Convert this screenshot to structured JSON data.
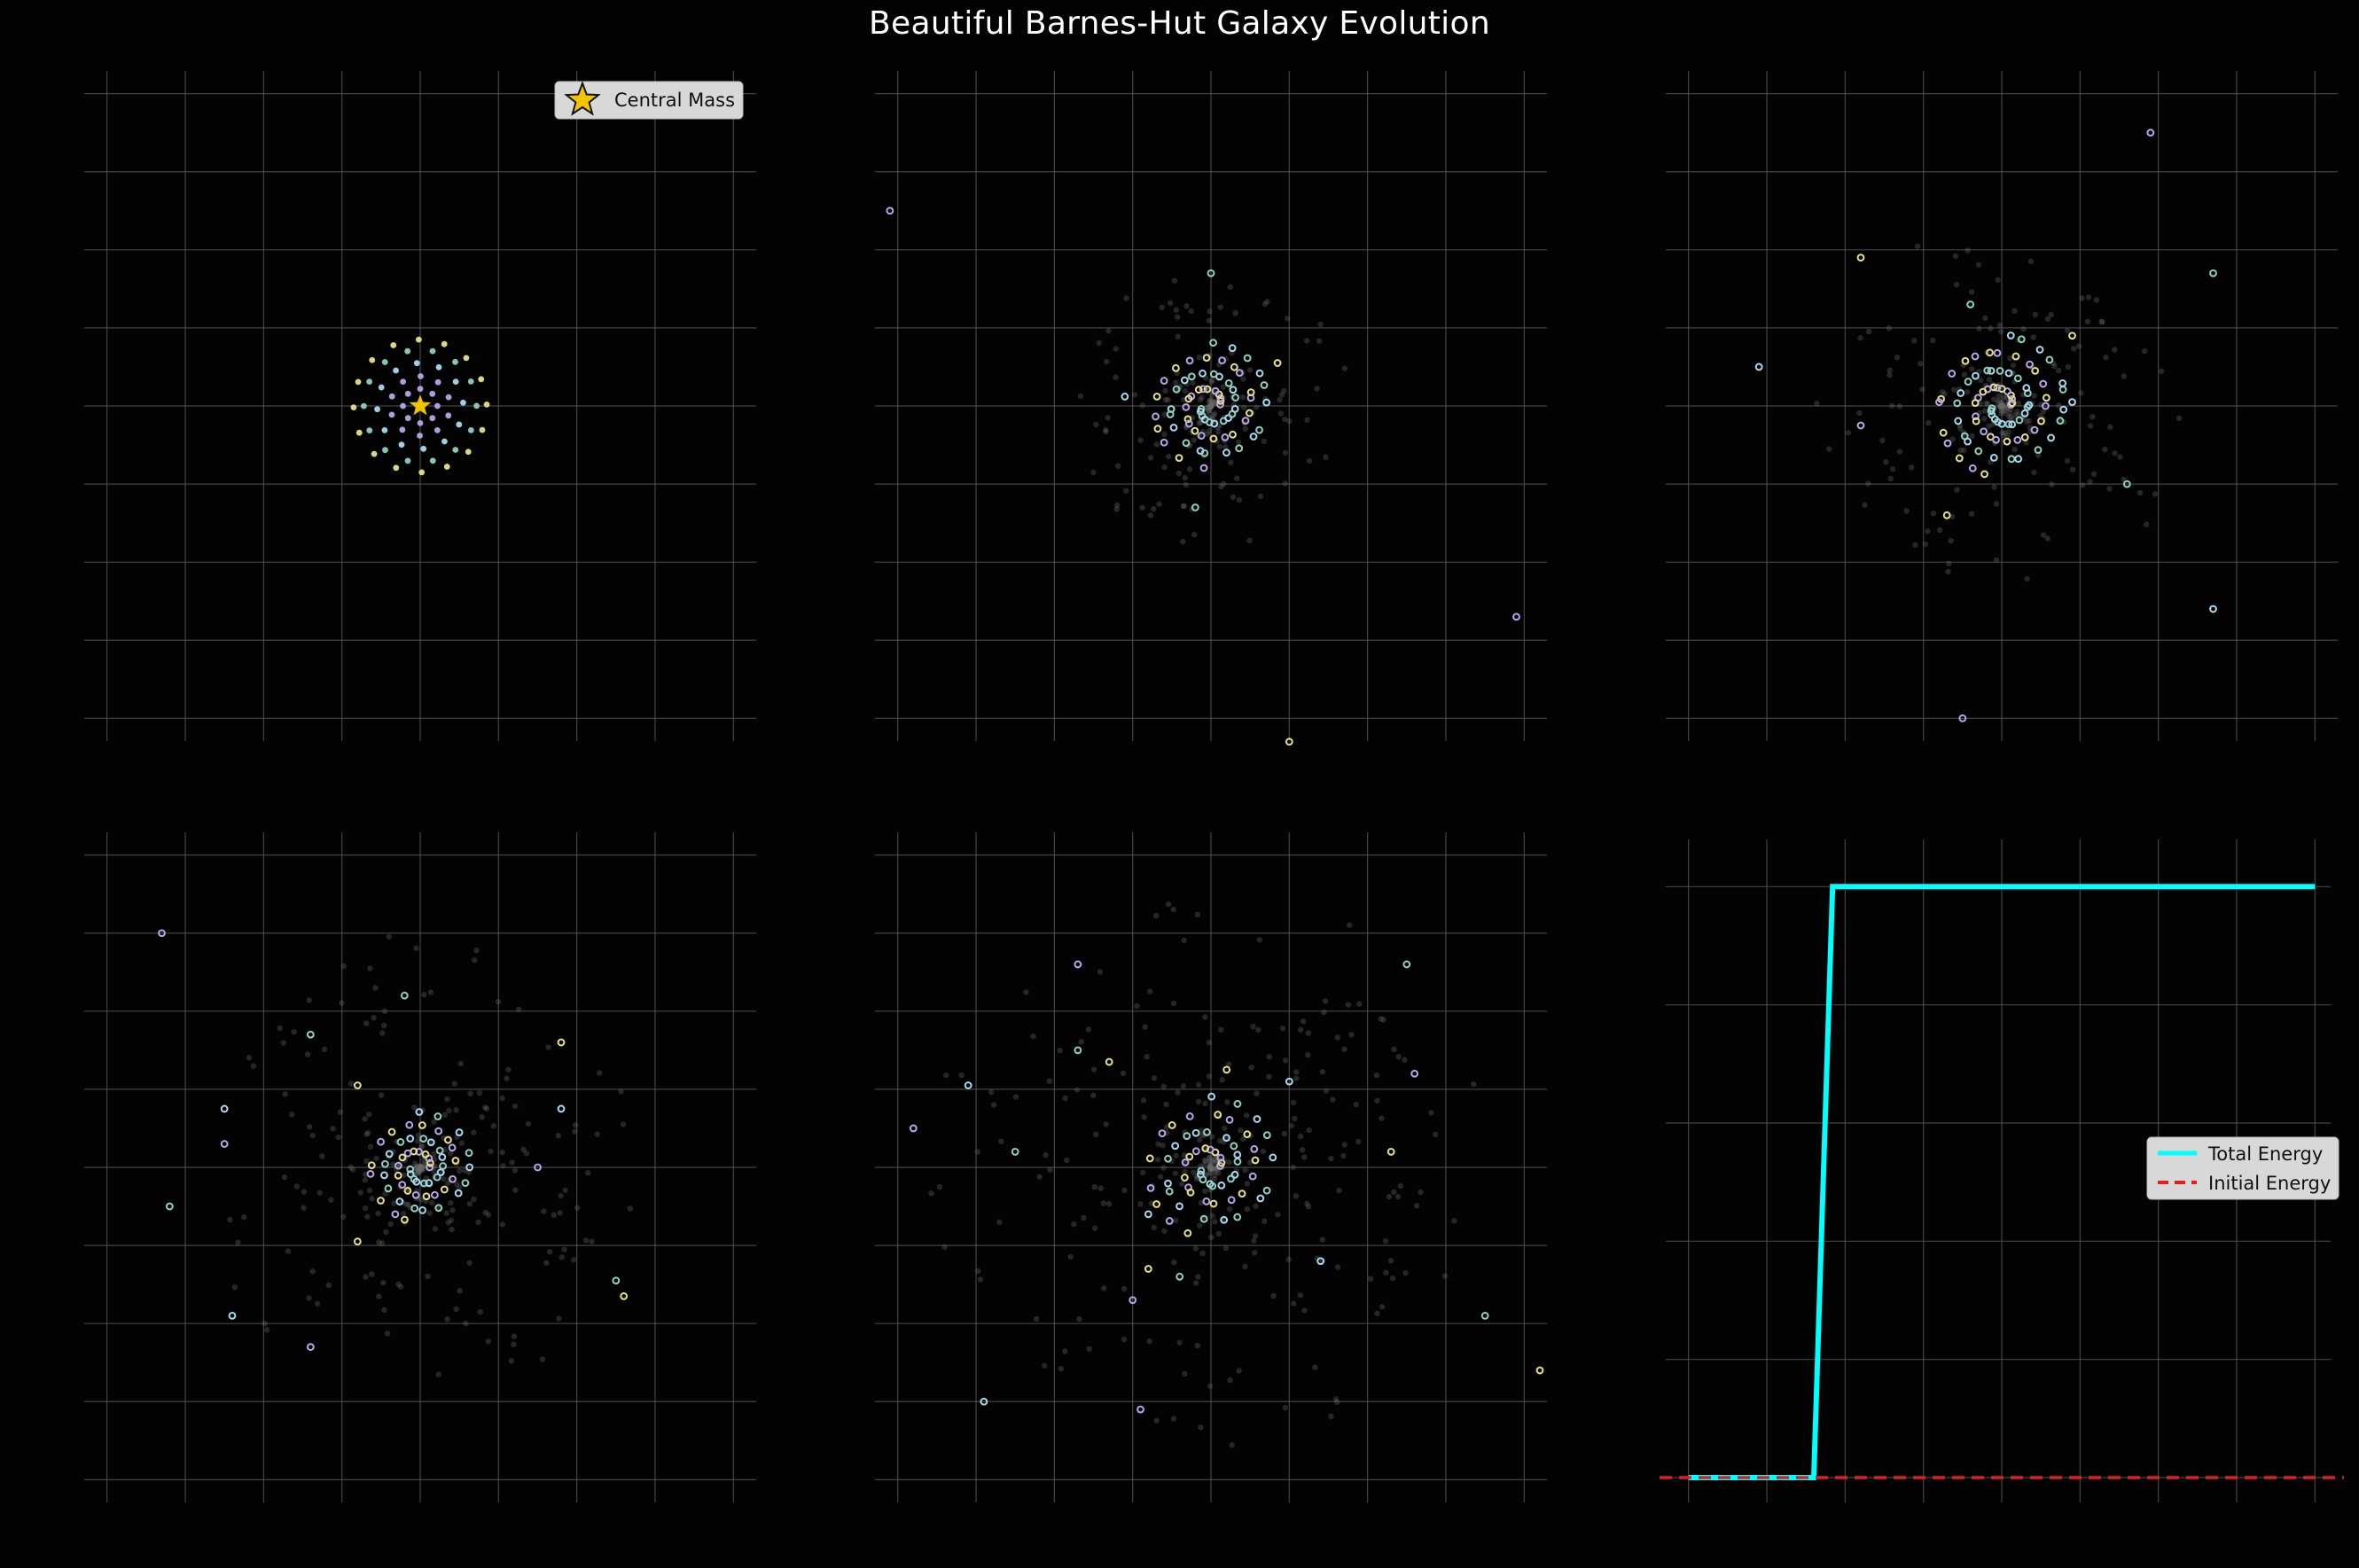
{
  "figure": {
    "title": "Beautiful Barnes-Hut Galaxy Evolution",
    "background": "#030303"
  },
  "palette": {
    "grid": "#5a5a5a",
    "particles": [
      "#b8a6e8",
      "#8ed1c0",
      "#e8e08a",
      "#a9d8f0"
    ],
    "trail": "#6a6a6a",
    "star": "#f2c400",
    "energy_line": "#00ffff",
    "initial_line": "#e02020"
  },
  "chart_data": [
    {
      "type": "scatter",
      "panel": "t0",
      "title": "",
      "xlabel": "",
      "ylabel": "",
      "xlim": [
        -4.2,
        4.2
      ],
      "ylim": [
        -4.2,
        4.2
      ],
      "grid": true,
      "legend": {
        "placement": "top-right",
        "entries": [
          "Central Mass"
        ]
      },
      "central_mass": {
        "x": 0,
        "y": 0,
        "marker": "star",
        "label": "Central Mass"
      },
      "particles": {
        "rings": [
          {
            "radius": 0.22,
            "count": 8,
            "color": "#b8a6e8"
          },
          {
            "radius": 0.38,
            "count": 10,
            "color": "#b8a6e8"
          },
          {
            "radius": 0.55,
            "count": 12,
            "color": "#a9d8f0"
          },
          {
            "radius": 0.72,
            "count": 14,
            "color": "#8ed1c0"
          },
          {
            "radius": 0.85,
            "count": 16,
            "color": "#e8e08a"
          }
        ]
      }
    },
    {
      "type": "scatter",
      "panel": "t1",
      "title": "",
      "xlabel": "",
      "ylabel": "",
      "xlim": [
        -4.2,
        4.2
      ],
      "ylim": [
        -4.2,
        4.2
      ],
      "grid": true,
      "particles": {
        "core_radius": 0.7,
        "core_count": 70,
        "spiral": true,
        "outliers": [
          {
            "x": -4.1,
            "y": 2.5
          },
          {
            "x": 0.0,
            "y": 1.7
          },
          {
            "x": 0.85,
            "y": 0.55
          },
          {
            "x": -1.1,
            "y": 0.12
          },
          {
            "x": 3.9,
            "y": -2.7
          },
          {
            "x": -0.2,
            "y": -1.3
          },
          {
            "x": 1.0,
            "y": -4.3
          }
        ]
      }
    },
    {
      "type": "scatter",
      "panel": "t2",
      "title": "",
      "xlabel": "",
      "ylabel": "",
      "xlim": [
        -4.2,
        4.2
      ],
      "ylim": [
        -4.2,
        4.2
      ],
      "grid": true,
      "particles": {
        "core_radius": 0.8,
        "core_count": 80,
        "spiral": true,
        "outliers": [
          {
            "x": 1.9,
            "y": 3.5
          },
          {
            "x": 2.7,
            "y": 1.7
          },
          {
            "x": -1.8,
            "y": 1.9
          },
          {
            "x": -3.1,
            "y": 0.5
          },
          {
            "x": -1.8,
            "y": -0.25
          },
          {
            "x": 1.6,
            "y": -1.0
          },
          {
            "x": -0.7,
            "y": -1.4
          },
          {
            "x": 2.7,
            "y": -2.6
          },
          {
            "x": -0.5,
            "y": -4.0
          },
          {
            "x": -0.4,
            "y": 1.3
          },
          {
            "x": 0.9,
            "y": 0.9
          },
          {
            "x": 0.9,
            "y": 0.05
          }
        ]
      }
    },
    {
      "type": "scatter",
      "panel": "t3",
      "title": "",
      "xlabel": "",
      "ylabel": "",
      "xlim": [
        -4.2,
        4.2
      ],
      "ylim": [
        -4.2,
        4.2
      ],
      "grid": true,
      "particles": {
        "core_radius": 0.6,
        "core_count": 60,
        "spiral": true,
        "outliers": [
          {
            "x": -3.3,
            "y": 3.0
          },
          {
            "x": -1.4,
            "y": 1.7
          },
          {
            "x": -0.8,
            "y": 1.05
          },
          {
            "x": -2.5,
            "y": 0.75
          },
          {
            "x": -2.5,
            "y": 0.3
          },
          {
            "x": -3.2,
            "y": -0.5
          },
          {
            "x": 1.8,
            "y": 1.6
          },
          {
            "x": 1.8,
            "y": 0.75
          },
          {
            "x": 1.5,
            "y": 0.0
          },
          {
            "x": 2.5,
            "y": -1.45
          },
          {
            "x": 2.6,
            "y": -1.65
          },
          {
            "x": -2.4,
            "y": -1.9
          },
          {
            "x": -1.4,
            "y": -2.3
          },
          {
            "x": -0.2,
            "y": 2.2
          },
          {
            "x": -0.8,
            "y": -0.95
          }
        ]
      }
    },
    {
      "type": "scatter",
      "panel": "t4",
      "title": "",
      "xlabel": "",
      "ylabel": "",
      "xlim": [
        -4.2,
        4.2
      ],
      "ylim": [
        -4.2,
        4.2
      ],
      "grid": true,
      "particles": {
        "core_radius": 0.8,
        "core_count": 60,
        "spiral": true,
        "outliers": [
          {
            "x": -1.7,
            "y": 2.6
          },
          {
            "x": -1.7,
            "y": 1.5
          },
          {
            "x": -1.3,
            "y": 1.35
          },
          {
            "x": -3.1,
            "y": 1.05
          },
          {
            "x": -3.8,
            "y": 0.5
          },
          {
            "x": -2.5,
            "y": 0.2
          },
          {
            "x": 0.2,
            "y": 1.25
          },
          {
            "x": 1.0,
            "y": 1.1
          },
          {
            "x": 2.6,
            "y": 1.2
          },
          {
            "x": 2.5,
            "y": 2.6
          },
          {
            "x": 2.3,
            "y": 0.2
          },
          {
            "x": 1.4,
            "y": -1.2
          },
          {
            "x": -1.0,
            "y": -1.7
          },
          {
            "x": -0.4,
            "y": -1.4
          },
          {
            "x": -0.8,
            "y": -1.3
          },
          {
            "x": -2.9,
            "y": -3.0
          },
          {
            "x": -0.9,
            "y": -3.1
          },
          {
            "x": 3.5,
            "y": -1.9
          },
          {
            "x": 4.2,
            "y": -2.6
          },
          {
            "x": -0.8,
            "y": -0.6
          }
        ]
      }
    },
    {
      "type": "line",
      "panel": "energy",
      "title": "",
      "xlabel": "",
      "ylabel": "",
      "xlim": [
        -0.5,
        20.5
      ],
      "ylim": [
        -0.03,
        1.08
      ],
      "grid": true,
      "legend": {
        "placement": "center-right",
        "entries": [
          "Total Energy",
          "Initial Energy"
        ]
      },
      "series": [
        {
          "name": "Total Energy",
          "style": "solid",
          "color": "#00ffff",
          "x": [
            0,
            1,
            2,
            3,
            4,
            5,
            6,
            7,
            8,
            9,
            10,
            11,
            12,
            13,
            14,
            15,
            16,
            17,
            18,
            19,
            20
          ],
          "y": [
            0,
            0,
            0,
            0,
            0,
            1,
            1,
            1,
            1,
            1,
            1,
            1,
            1,
            1,
            1,
            1,
            1,
            1,
            1,
            1,
            1
          ],
          "x_precise": [
            0,
            4.0,
            4.6,
            20
          ],
          "y_precise": [
            0,
            0,
            1,
            1
          ]
        },
        {
          "name": "Initial Energy",
          "style": "dashed",
          "color": "#e02020",
          "y": 0
        }
      ]
    }
  ]
}
